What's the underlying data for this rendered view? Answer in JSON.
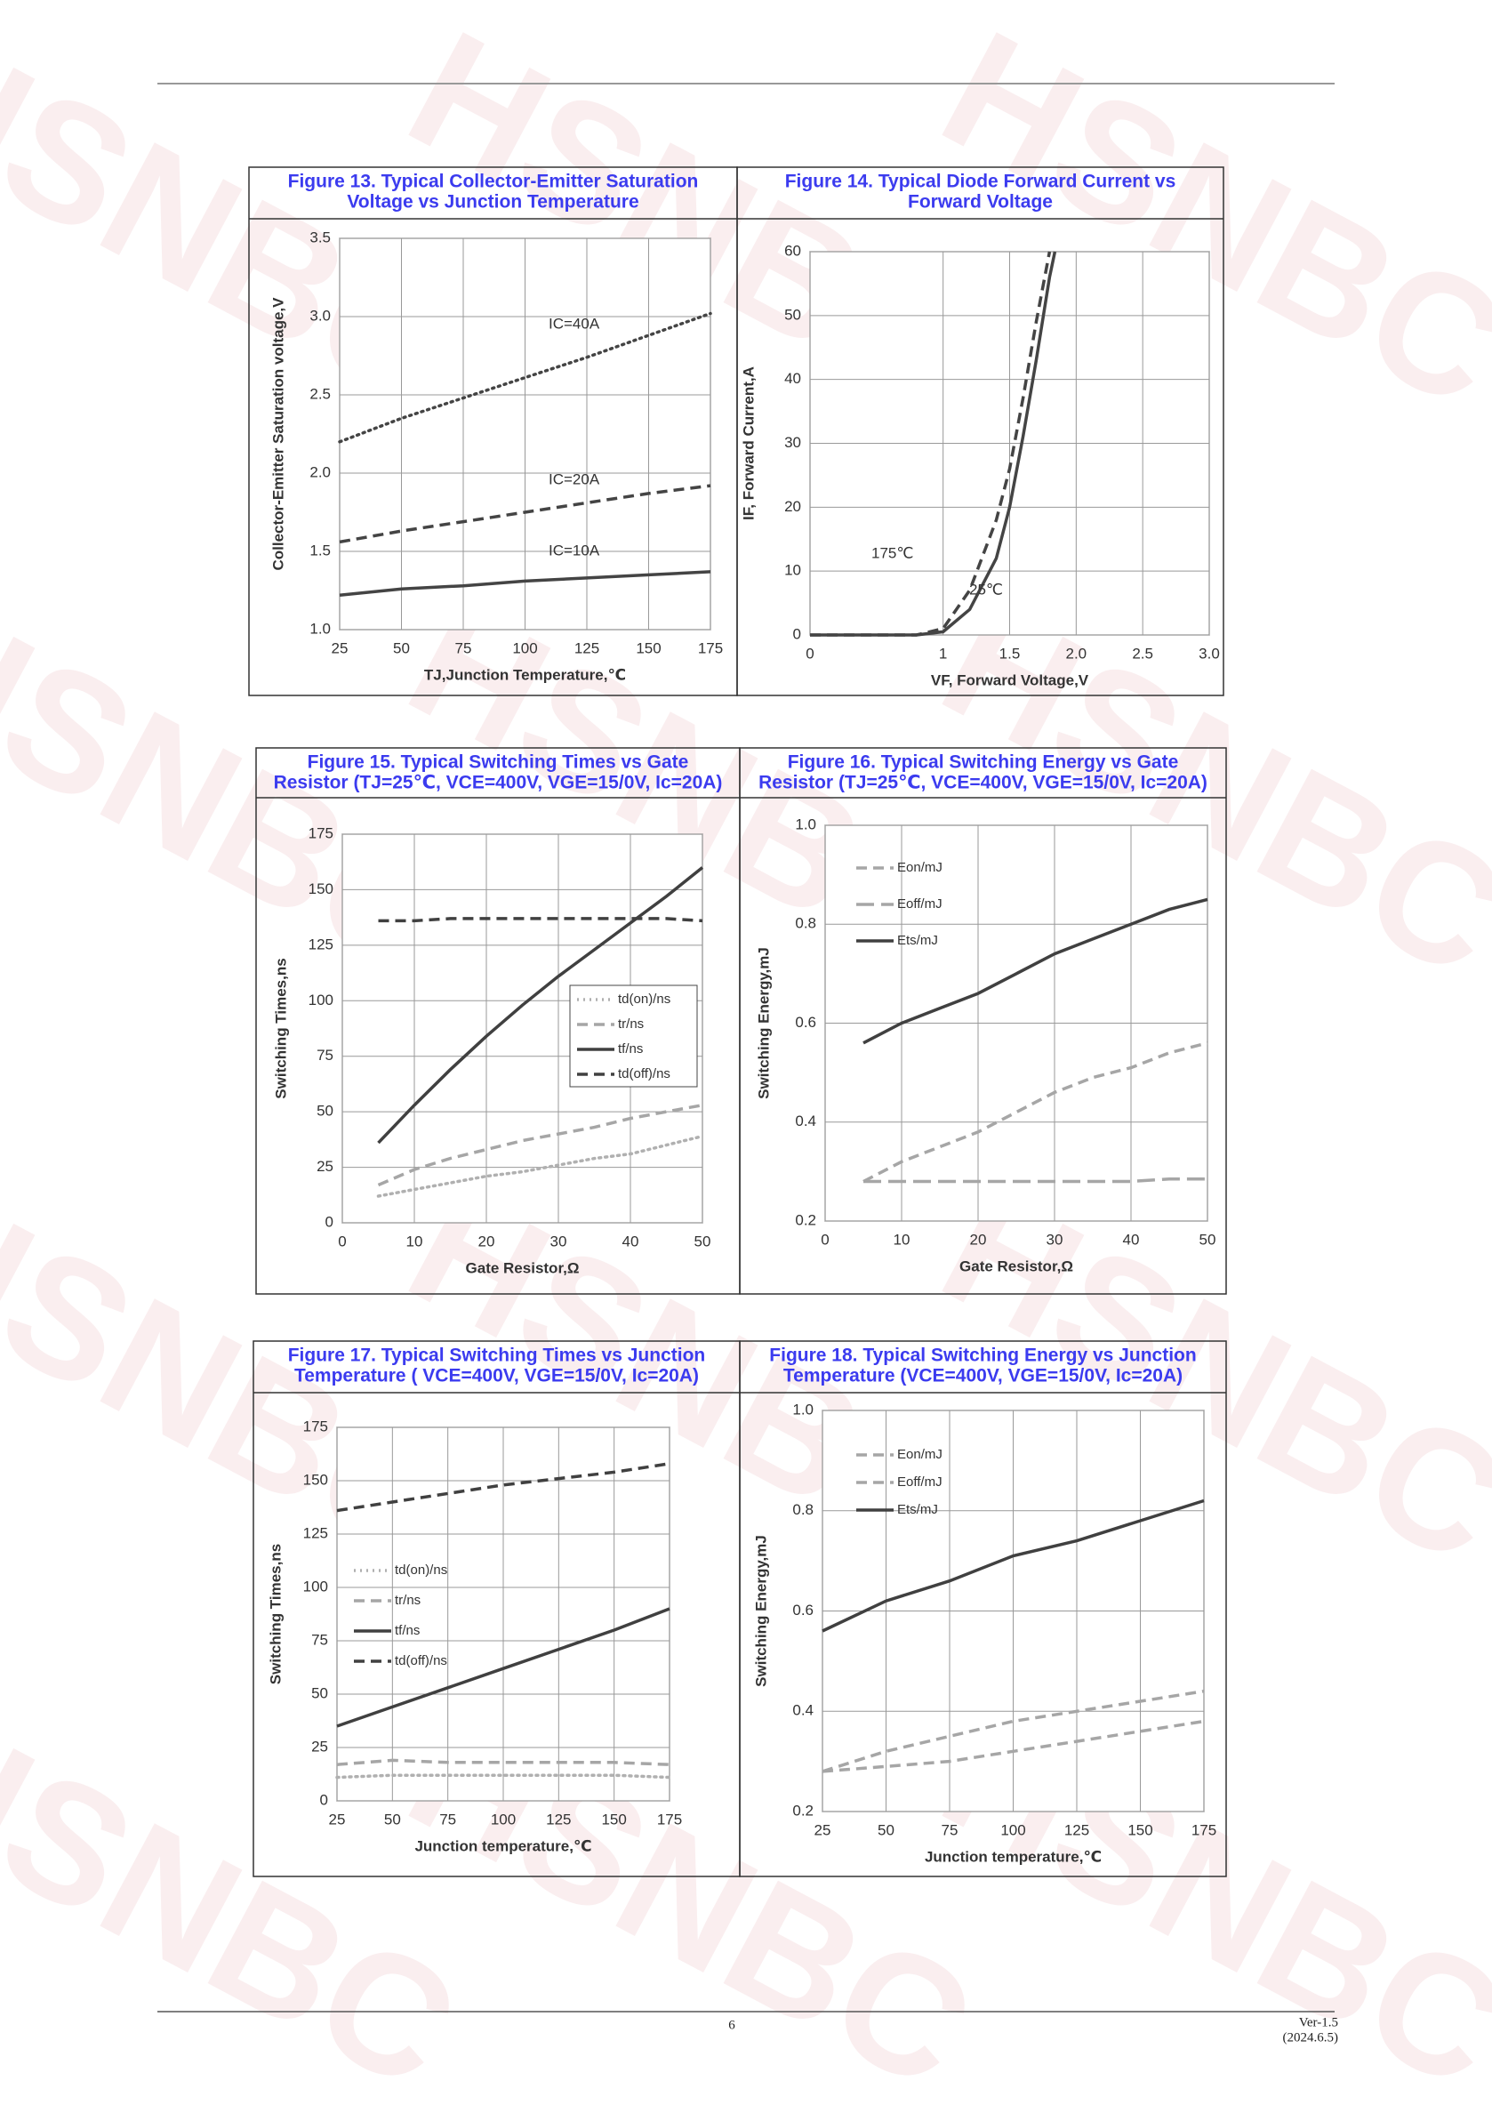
{
  "watermark": "HSNBC",
  "chart_data": [
    {
      "type": "line",
      "title": [
        "Figure 13. Typical Collector-Emitter Saturation",
        "Voltage vs Junction Temperature"
      ],
      "x_label": "TJ,Junction Temperature,℃",
      "y_label": "Collector-Emitter Saturation voltage,V",
      "x": [
        25,
        50,
        75,
        100,
        125,
        150,
        175
      ],
      "series": [
        {
          "name": "IC=40A",
          "color": "#444444",
          "dash": "dotted",
          "values": [
            2.2,
            2.35,
            2.48,
            2.61,
            2.74,
            2.88,
            3.02
          ]
        },
        {
          "name": "IC=20A",
          "color": "#444444",
          "dash": "dashed",
          "values": [
            1.56,
            1.63,
            1.69,
            1.75,
            1.81,
            1.87,
            1.92
          ]
        },
        {
          "name": "IC=10A",
          "color": "#444444",
          "dash": "solid",
          "values": [
            1.22,
            1.26,
            1.28,
            1.31,
            1.33,
            1.35,
            1.37
          ]
        }
      ],
      "xlim": [
        25,
        175
      ],
      "xticks": [
        25,
        50,
        75,
        100,
        125,
        150,
        175
      ],
      "ylim": [
        1,
        3.5
      ],
      "yticks": [
        {
          "value": 1,
          "label": "1.0"
        },
        1.5,
        {
          "value": 2,
          "label": "2.0"
        },
        2.5,
        {
          "value": 3,
          "label": "3.0"
        },
        3.5
      ],
      "grid": true,
      "legend": false
    },
    {
      "type": "line",
      "title": [
        "Figure 14. Typical Diode Forward Current vs",
        "Forward Voltage"
      ],
      "x_label": "VF, Forward Voltage,V",
      "y_label": "IF, Forward Current,A",
      "series": [
        {
          "name": "175℃",
          "color": "#444444",
          "dash": "dashed",
          "x": [
            0,
            0.8,
            1.0,
            1.2,
            1.4,
            1.5,
            1.6,
            1.7,
            1.8
          ],
          "values": [
            0,
            0,
            1,
            7,
            18,
            26,
            37,
            49,
            60
          ]
        },
        {
          "name": "25℃",
          "color": "#444444",
          "dash": "solid",
          "x": [
            0,
            0.8,
            1.0,
            1.2,
            1.4,
            1.5,
            1.6,
            1.7,
            1.8,
            1.84
          ],
          "values": [
            0,
            0,
            0.5,
            4,
            12,
            20,
            31,
            43,
            56,
            60
          ]
        }
      ],
      "xlim": [
        0,
        3
      ],
      "xticks": [
        0,
        1,
        1.5,
        {
          "value": 2,
          "label": "2.0"
        },
        2.5,
        {
          "value": 3,
          "label": "3.0"
        }
      ],
      "ylim": [
        0,
        60
      ],
      "yticks": [
        0,
        10,
        20,
        30,
        40,
        50,
        60
      ],
      "grid": true,
      "legend": false
    },
    {
      "type": "line",
      "title": [
        "Figure 15. Typical Switching Times vs Gate",
        "Resistor (TJ=25℃, VCE=400V, VGE=15/0V, Ic=20A)"
      ],
      "x_label": "Gate Resistor,Ω",
      "y_label": "Switching Times,ns",
      "x": [
        5,
        10,
        15,
        20,
        25,
        30,
        35,
        40,
        45,
        50
      ],
      "series": [
        {
          "name": "td(on)/ns",
          "color": "#b0b0b0",
          "dash": "dotted",
          "values": [
            12,
            15,
            18,
            21,
            23,
            26,
            29,
            31,
            35,
            39
          ]
        },
        {
          "name": "tr/ns",
          "color": "#a6a6a6",
          "dash": "dashed",
          "values": [
            17,
            24,
            29,
            33,
            37,
            40,
            43,
            47,
            50,
            53
          ]
        },
        {
          "name": "tf/ns",
          "color": "#404040",
          "dash": "solid",
          "values": [
            36,
            53,
            69,
            84,
            98,
            111,
            123,
            135,
            147,
            160
          ]
        },
        {
          "name": "td(off)/ns",
          "color": "#404040",
          "dash": "dashed",
          "values": [
            136,
            136,
            137,
            137,
            137,
            137,
            137,
            137,
            137,
            136
          ]
        }
      ],
      "xlim": [
        0,
        50
      ],
      "xticks": [
        0,
        10,
        20,
        30,
        40,
        50
      ],
      "ylim": [
        0,
        175
      ],
      "yticks": [
        0,
        25,
        50,
        75,
        100,
        125,
        150,
        175
      ],
      "grid": true,
      "legend": "center right"
    },
    {
      "type": "line",
      "title": [
        "Figure 16. Typical Switching Energy vs Gate",
        "Resistor (TJ=25℃, VCE=400V, VGE=15/0V, Ic=20A)"
      ],
      "x_label": "Gate Resistor,Ω",
      "y_label": "Switching Energy,mJ",
      "x": [
        5,
        10,
        15,
        20,
        25,
        30,
        35,
        40,
        45,
        50
      ],
      "series": [
        {
          "name": "Eon/mJ",
          "color": "#a6a6a6",
          "dash": "dashed",
          "values": [
            0.28,
            0.32,
            0.35,
            0.38,
            0.42,
            0.46,
            0.49,
            0.51,
            0.54,
            0.56
          ]
        },
        {
          "name": "Eoff/mJ",
          "color": "#a6a6a6",
          "dash": "longdash",
          "values": [
            0.28,
            0.28,
            0.28,
            0.28,
            0.28,
            0.28,
            0.28,
            0.28,
            0.285,
            0.285
          ]
        },
        {
          "name": "Ets/mJ",
          "color": "#404040",
          "dash": "solid",
          "values": [
            0.56,
            0.6,
            0.63,
            0.66,
            0.7,
            0.74,
            0.77,
            0.8,
            0.83,
            0.85
          ]
        }
      ],
      "xlim": [
        0,
        50
      ],
      "xticks": [
        0,
        10,
        20,
        30,
        40,
        50
      ],
      "ylim": [
        0.2,
        1
      ],
      "yticks": [
        0.2,
        0.4,
        0.6,
        0.8,
        {
          "value": 1,
          "label": "1.0"
        }
      ],
      "grid": true,
      "legend": "upper left"
    },
    {
      "type": "line",
      "title": [
        "Figure 17. Typical Switching Times vs Junction",
        "Temperature ( VCE=400V, VGE=15/0V, Ic=20A)"
      ],
      "x_label": "Junction temperature,℃",
      "y_label": "Switching Times,ns",
      "x": [
        25,
        50,
        75,
        100,
        125,
        150,
        175
      ],
      "series": [
        {
          "name": "td(on)/ns",
          "color": "#b0b0b0",
          "dash": "dotted",
          "values": [
            11,
            12,
            12,
            12,
            12,
            12,
            11
          ]
        },
        {
          "name": "tr/ns",
          "color": "#a6a6a6",
          "dash": "dashed",
          "values": [
            17,
            19,
            18,
            18,
            18,
            18,
            17
          ]
        },
        {
          "name": "tf/ns",
          "color": "#404040",
          "dash": "solid",
          "values": [
            35,
            44,
            53,
            62,
            71,
            80,
            90
          ]
        },
        {
          "name": "td(off)/ns",
          "color": "#404040",
          "dash": "dashed",
          "values": [
            136,
            140,
            144,
            148,
            151,
            154,
            158
          ]
        }
      ],
      "xlim": [
        25,
        175
      ],
      "xticks": [
        25,
        50,
        75,
        100,
        125,
        150,
        175
      ],
      "ylim": [
        0,
        175
      ],
      "yticks": [
        0,
        25,
        50,
        75,
        100,
        125,
        150,
        175
      ],
      "grid": true,
      "legend": "center left"
    },
    {
      "type": "line",
      "title": [
        "Figure 18. Typical Switching Energy vs Junction",
        "Temperature (VCE=400V, VGE=15/0V, Ic=20A)"
      ],
      "x_label": "Junction temperature,℃",
      "y_label": "Switching Energy,mJ",
      "x": [
        25,
        50,
        75,
        100,
        125,
        150,
        175
      ],
      "series": [
        {
          "name": "Eon/mJ",
          "color": "#a6a6a6",
          "dash": "dashed",
          "values": [
            0.28,
            0.32,
            0.35,
            0.38,
            0.4,
            0.42,
            0.44
          ]
        },
        {
          "name": "Eoff/mJ",
          "color": "#a6a6a6",
          "dash": "dashed",
          "values": [
            0.28,
            0.29,
            0.3,
            0.32,
            0.34,
            0.36,
            0.38
          ]
        },
        {
          "name": "Ets/mJ",
          "color": "#404040",
          "dash": "solid",
          "values": [
            0.56,
            0.62,
            0.66,
            0.71,
            0.74,
            0.78,
            0.82
          ]
        }
      ],
      "xlim": [
        25,
        175
      ],
      "xticks": [
        25,
        50,
        75,
        100,
        125,
        150,
        175
      ],
      "ylim": [
        0.2,
        1
      ],
      "yticks": [
        0.2,
        0.4,
        0.6,
        0.8,
        {
          "value": 1,
          "label": "1.0"
        }
      ],
      "grid": true,
      "legend": "upper left"
    }
  ],
  "footer": {
    "page_number": "6",
    "version": "Ver-1.5",
    "date": "(2024.6.5)"
  }
}
